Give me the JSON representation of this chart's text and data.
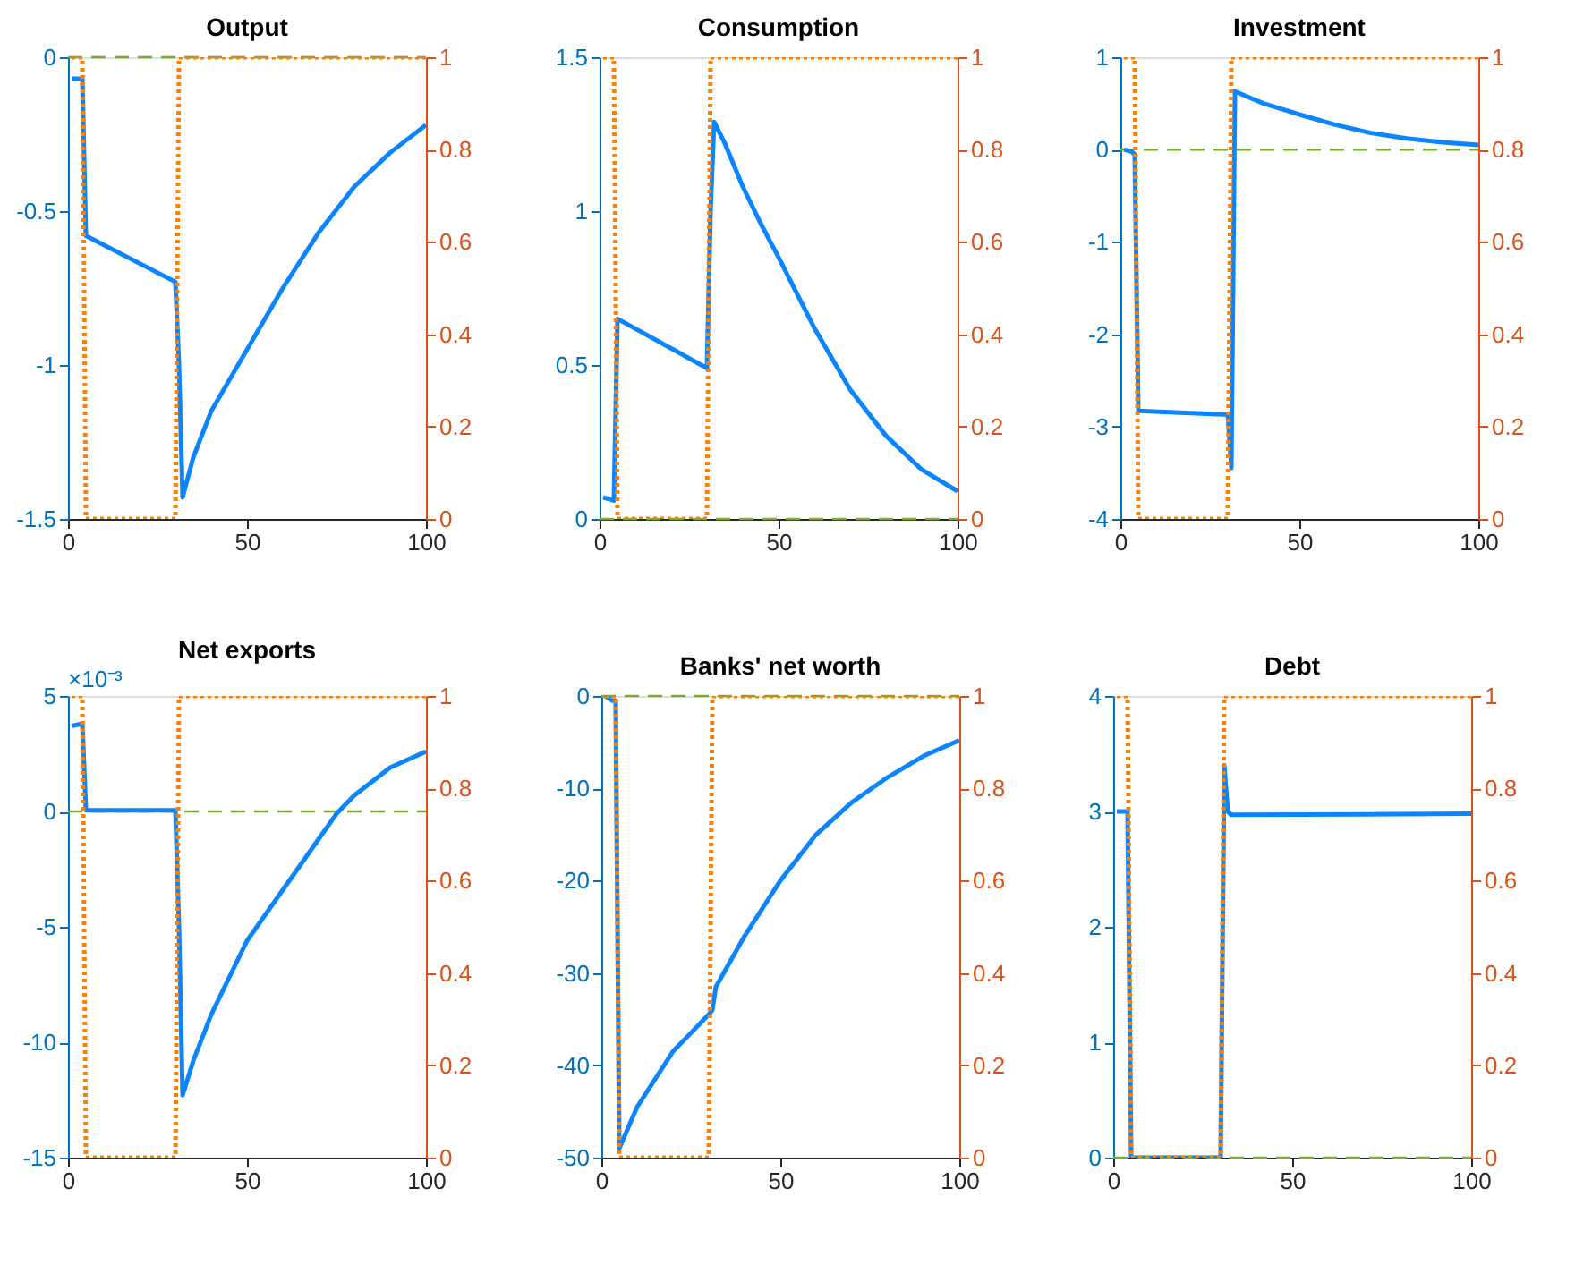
{
  "chart_data": [
    {
      "type": "line",
      "title": "Output",
      "xlim": [
        0,
        100
      ],
      "xticks": [
        0,
        50,
        100
      ],
      "ylim": [
        -1.5,
        0
      ],
      "yticks": [
        -1.5,
        -1,
        -0.5,
        0
      ],
      "y2lim": [
        0,
        1
      ],
      "y2ticks": [
        0,
        0.2,
        0.4,
        0.6,
        0.8,
        1
      ],
      "grid": false,
      "series": [
        {
          "color": "#0a84ff",
          "line_style": "solid",
          "x": [
            1,
            4,
            5,
            30,
            31,
            32,
            35,
            40,
            50,
            60,
            70,
            80,
            90,
            100
          ],
          "values": [
            -0.07,
            -0.07,
            -0.58,
            -0.73,
            -1.0,
            -1.43,
            -1.3,
            -1.15,
            -0.95,
            -0.75,
            -0.57,
            -0.42,
            -0.31,
            -0.22
          ]
        },
        {
          "color": "#ff8000",
          "axis": "y2",
          "line_style": "dotted",
          "x": [
            1,
            4,
            5,
            30,
            31,
            100
          ],
          "values": [
            1,
            1,
            0,
            0,
            1,
            1
          ]
        }
      ],
      "ref_lines": [
        {
          "axis": "y",
          "value": 0,
          "color": "#77ac30",
          "line_style": "dashed"
        }
      ]
    },
    {
      "type": "line",
      "title": "Consumption",
      "xlim": [
        0,
        100
      ],
      "xticks": [
        0,
        50,
        100
      ],
      "ylim": [
        0,
        1.5
      ],
      "yticks": [
        0,
        0.5,
        1,
        1.5
      ],
      "y2lim": [
        0,
        1
      ],
      "y2ticks": [
        0,
        0.2,
        0.4,
        0.6,
        0.8,
        1
      ],
      "grid": false,
      "series": [
        {
          "color": "#0a84ff",
          "line_style": "solid",
          "x": [
            1,
            4,
            5,
            30,
            31,
            32,
            35,
            40,
            45,
            50,
            60,
            70,
            80,
            90,
            100
          ],
          "values": [
            0.07,
            0.06,
            0.65,
            0.49,
            1.0,
            1.29,
            1.22,
            1.08,
            0.96,
            0.85,
            0.62,
            0.42,
            0.27,
            0.16,
            0.09
          ]
        },
        {
          "color": "#ff8000",
          "axis": "y2",
          "line_style": "dotted",
          "x": [
            1,
            4,
            5,
            30,
            31,
            100
          ],
          "values": [
            1,
            1,
            0,
            0,
            1,
            1
          ]
        }
      ],
      "ref_lines": [
        {
          "axis": "y",
          "value": 0,
          "color": "#77ac30",
          "line_style": "dashed"
        }
      ]
    },
    {
      "type": "line",
      "title": "Investment",
      "xlim": [
        0,
        100
      ],
      "xticks": [
        0,
        50,
        100
      ],
      "ylim": [
        -4,
        1
      ],
      "yticks": [
        -4,
        -3,
        -2,
        -1,
        0,
        1
      ],
      "y2lim": [
        0,
        1
      ],
      "y2ticks": [
        0,
        0.2,
        0.4,
        0.6,
        0.8,
        1
      ],
      "grid": false,
      "series": [
        {
          "color": "#0a84ff",
          "line_style": "solid",
          "x": [
            1,
            3,
            4,
            5,
            30,
            31,
            32,
            40,
            50,
            60,
            70,
            80,
            90,
            100
          ],
          "values": [
            0,
            -0.02,
            -0.05,
            -2.83,
            -2.87,
            -3.45,
            0.63,
            0.5,
            0.38,
            0.27,
            0.18,
            0.12,
            0.08,
            0.05
          ]
        },
        {
          "color": "#ff8000",
          "axis": "y2",
          "line_style": "dotted",
          "x": [
            1,
            4,
            5,
            30,
            31,
            100
          ],
          "values": [
            1,
            1,
            0,
            0,
            1,
            1
          ]
        }
      ],
      "ref_lines": [
        {
          "axis": "y",
          "value": 0,
          "color": "#77ac30",
          "line_style": "dashed"
        }
      ]
    },
    {
      "type": "line",
      "title": "Net exports",
      "annotations": [
        "×10⁻³"
      ],
      "xlim": [
        0,
        100
      ],
      "xticks": [
        0,
        50,
        100
      ],
      "ylim": [
        -15,
        5
      ],
      "yticks": [
        -15,
        -10,
        -5,
        0,
        5
      ],
      "y2lim": [
        0,
        1
      ],
      "y2ticks": [
        0,
        0.2,
        0.4,
        0.6,
        0.8,
        1
      ],
      "grid": false,
      "series": [
        {
          "color": "#0a84ff",
          "line_style": "solid",
          "x": [
            1,
            4,
            5,
            30,
            31,
            32,
            35,
            40,
            50,
            60,
            70,
            75,
            80,
            90,
            100
          ],
          "values": [
            3.7,
            3.8,
            0.05,
            0.05,
            -5,
            -12.3,
            -10.8,
            -8.8,
            -5.6,
            -3.4,
            -1.2,
            -0.1,
            0.7,
            1.9,
            2.6
          ]
        },
        {
          "color": "#ff8000",
          "axis": "y2",
          "line_style": "dotted",
          "x": [
            1,
            4,
            5,
            30,
            31,
            100
          ],
          "values": [
            1,
            1,
            0,
            0,
            1,
            1
          ]
        }
      ],
      "ref_lines": [
        {
          "axis": "y",
          "value": 0,
          "color": "#77ac30",
          "line_style": "dashed"
        }
      ]
    },
    {
      "type": "line",
      "title": "Banks' net worth",
      "xlim": [
        0,
        100
      ],
      "xticks": [
        0,
        50,
        100
      ],
      "ylim": [
        -50,
        0
      ],
      "yticks": [
        -50,
        -40,
        -30,
        -20,
        -10,
        0
      ],
      "y2lim": [
        0,
        1
      ],
      "y2ticks": [
        0,
        0.2,
        0.4,
        0.6,
        0.8,
        1
      ],
      "grid": false,
      "series": [
        {
          "color": "#0a84ff",
          "line_style": "solid",
          "x": [
            1,
            3,
            4,
            5,
            10,
            20,
            30,
            31,
            32,
            40,
            50,
            60,
            70,
            80,
            90,
            100
          ],
          "values": [
            0,
            -0.5,
            -0.5,
            -49,
            -44.5,
            -38.5,
            -34.5,
            -34,
            -31.5,
            -26,
            -20,
            -15,
            -11.5,
            -8.8,
            -6.5,
            -4.8
          ]
        },
        {
          "color": "#ff8000",
          "axis": "y2",
          "line_style": "dotted",
          "x": [
            1,
            4,
            5,
            30,
            31,
            100
          ],
          "values": [
            1,
            1,
            0,
            0,
            1,
            1
          ]
        }
      ],
      "ref_lines": [
        {
          "axis": "y",
          "value": 0,
          "color": "#77ac30",
          "line_style": "dashed"
        }
      ]
    },
    {
      "type": "line",
      "title": "Debt",
      "xlim": [
        0,
        100
      ],
      "xticks": [
        0,
        50,
        100
      ],
      "ylim": [
        0,
        4
      ],
      "yticks": [
        0,
        1,
        2,
        3,
        4
      ],
      "y2lim": [
        0,
        1
      ],
      "y2ticks": [
        0,
        0.2,
        0.4,
        0.6,
        0.8,
        1
      ],
      "grid": false,
      "series": [
        {
          "color": "#0a84ff",
          "line_style": "solid",
          "x": [
            1,
            4,
            5,
            30,
            31,
            32,
            33,
            100
          ],
          "values": [
            3,
            3,
            0,
            0,
            3.4,
            3.0,
            2.97,
            2.98
          ]
        },
        {
          "color": "#ff8000",
          "axis": "y2",
          "line_style": "dotted",
          "x": [
            1,
            4,
            5,
            30,
            31,
            100
          ],
          "values": [
            1,
            1,
            0,
            0,
            1,
            1
          ]
        }
      ],
      "ref_lines": [
        {
          "axis": "y",
          "value": 0,
          "color": "#77ac30",
          "line_style": "dashed"
        }
      ]
    }
  ]
}
